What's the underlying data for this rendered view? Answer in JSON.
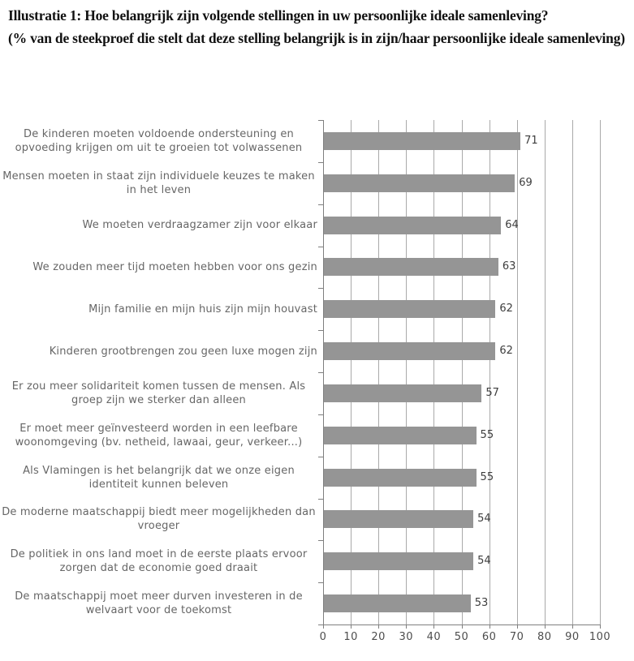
{
  "caption": {
    "question": "Illustratie 1: Hoe belangrijk zijn volgende stellingen in uw persoonlijke ideale samenleving?",
    "note": "(% van de steekproef die stelt dat deze stelling belangrijk is in zijn/haar persoonlijke ideale samenleving)"
  },
  "chart_data": {
    "type": "bar",
    "orientation": "horizontal",
    "title": "",
    "xlabel": "",
    "ylabel": "",
    "categories": [
      "De kinderen moeten voldoende ondersteuning en opvoeding krijgen om uit te groeien tot volwassenen",
      "Mensen moeten in staat zijn individuele keuzes te maken in het leven",
      "We moeten verdraagzamer zijn voor elkaar",
      "We zouden meer tijd moeten hebben voor ons gezin",
      "Mijn familie en mijn huis zijn mijn houvast",
      "Kinderen grootbrengen zou geen luxe mogen zijn",
      "Er zou meer solidariteit komen tussen de mensen. Als groep zijn we sterker dan alleen",
      "Er moet meer geïnvesteerd worden in een leefbare woonomgeving (bv. netheid, lawaai, geur, verkeer...)",
      "Als Vlamingen is het belangrijk dat we onze eigen identiteit kunnen beleven",
      "De moderne maatschappij biedt meer mogelijkheden dan vroeger",
      "De politiek in ons land moet in de eerste plaats ervoor zorgen dat de economie goed draait",
      "De maatschappij moet meer durven investeren in de welvaart voor de toekomst"
    ],
    "values": [
      71,
      69,
      64,
      63,
      62,
      62,
      57,
      55,
      55,
      54,
      54,
      53
    ],
    "data_labels": [
      "71",
      "69",
      "64",
      "63",
      "62",
      "62",
      "57",
      "55",
      "55",
      "54",
      "54",
      "53"
    ],
    "xlim": [
      0,
      100
    ],
    "x_ticks": [
      0,
      10,
      20,
      30,
      40,
      50,
      60,
      70,
      80,
      90,
      100
    ],
    "grid": true,
    "legend": false,
    "colors": {
      "bar": "#959595",
      "gridline": "#a9a9a9",
      "axis": "#7f7f7f",
      "category_label": "#666666",
      "value_label": "#3d3d3d",
      "tick_label": "#4d4d4d"
    }
  }
}
